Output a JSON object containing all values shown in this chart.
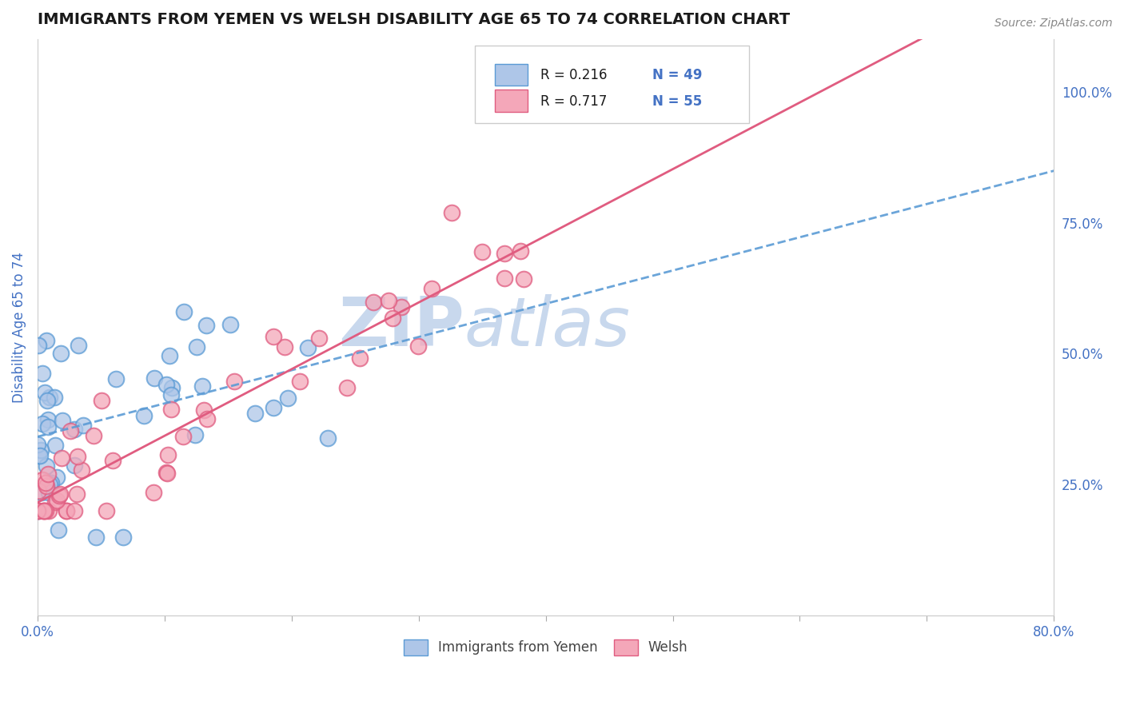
{
  "title": "IMMIGRANTS FROM YEMEN VS WELSH DISABILITY AGE 65 TO 74 CORRELATION CHART",
  "source": "Source: ZipAtlas.com",
  "ylabel": "Disability Age 65 to 74",
  "xlim": [
    0.0,
    0.8
  ],
  "ylim": [
    0.0,
    1.1
  ],
  "right_yticks": [
    0.25,
    0.5,
    0.75,
    1.0
  ],
  "right_ytick_labels": [
    "25.0%",
    "50.0%",
    "75.0%",
    "100.0%"
  ],
  "legend_r1": "R = 0.216",
  "legend_n1": "N = 49",
  "legend_r2": "R = 0.717",
  "legend_n2": "N = 55",
  "series1_color": "#aec6e8",
  "series1_edge": "#5b9bd5",
  "series2_color": "#f4a7b9",
  "series2_edge": "#e05c80",
  "line1_color": "#5b9bd5",
  "line2_color": "#e05c80",
  "watermark_zip": "ZIP",
  "watermark_atlas": "atlas",
  "watermark_color": "#c8d8ed",
  "background_color": "#ffffff",
  "grid_color": "#d0d0d0",
  "title_color": "#1a1a1a",
  "axis_label_color": "#4472c4",
  "line1_slope": 0.5,
  "line1_intercept": 0.35,
  "line2_slope": 1.35,
  "line2_intercept": 0.2
}
